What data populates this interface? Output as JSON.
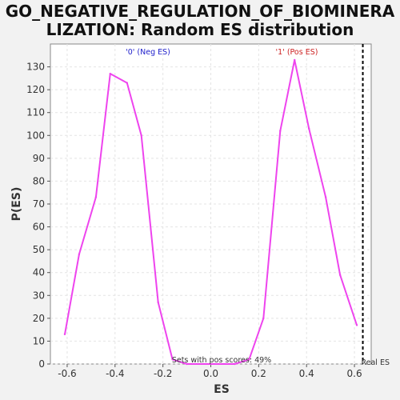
{
  "chart_data": {
    "type": "line",
    "title_line1": "GO_NEGATIVE_REGULATION_OF_BIOMINERA",
    "title_line2": "LIZATION: Random ES distribution",
    "xlabel": "ES",
    "ylabel": "P(ES)",
    "xlim": [
      -0.67,
      0.67
    ],
    "ylim": [
      0,
      140
    ],
    "xticks": [
      -0.6,
      -0.4,
      -0.2,
      0.0,
      0.2,
      0.4,
      0.6
    ],
    "xtick_labels": [
      "-0.6",
      "-0.4",
      "-0.2",
      "0.0",
      "0.2",
      "0.4",
      "0.6"
    ],
    "yticks": [
      0,
      10,
      20,
      30,
      40,
      50,
      60,
      70,
      80,
      90,
      100,
      110,
      120,
      130
    ],
    "ytick_labels": [
      "0",
      "10",
      "20",
      "30",
      "40",
      "50",
      "60",
      "70",
      "80",
      "90",
      "100",
      "110",
      "120",
      "130"
    ],
    "grid": true,
    "series": [
      {
        "color": "#ee44ee",
        "x": [
          -0.61,
          -0.55,
          -0.48,
          -0.42,
          -0.35,
          -0.29,
          -0.22,
          -0.16,
          -0.1,
          0.1,
          0.16,
          0.22,
          0.29,
          0.35,
          0.41,
          0.48,
          0.54,
          0.61
        ],
        "y": [
          13,
          48,
          73,
          127,
          123,
          100,
          27,
          2,
          0,
          0,
          2,
          20,
          102,
          133,
          103,
          73,
          39,
          17
        ]
      }
    ],
    "real_es": 0.635,
    "annotations": {
      "neg_label": "'0' (Neg ES)",
      "pos_label": "'1' (Pos ES)",
      "pos_scores": "Sets with pos scores: 49%",
      "real_es_label": "Real ES"
    },
    "colors": {
      "neg_label": "#2222cc",
      "pos_label": "#cc2222",
      "line": "#ee44ee",
      "grid": "#e4e4e4",
      "real_es": "#000000"
    }
  }
}
